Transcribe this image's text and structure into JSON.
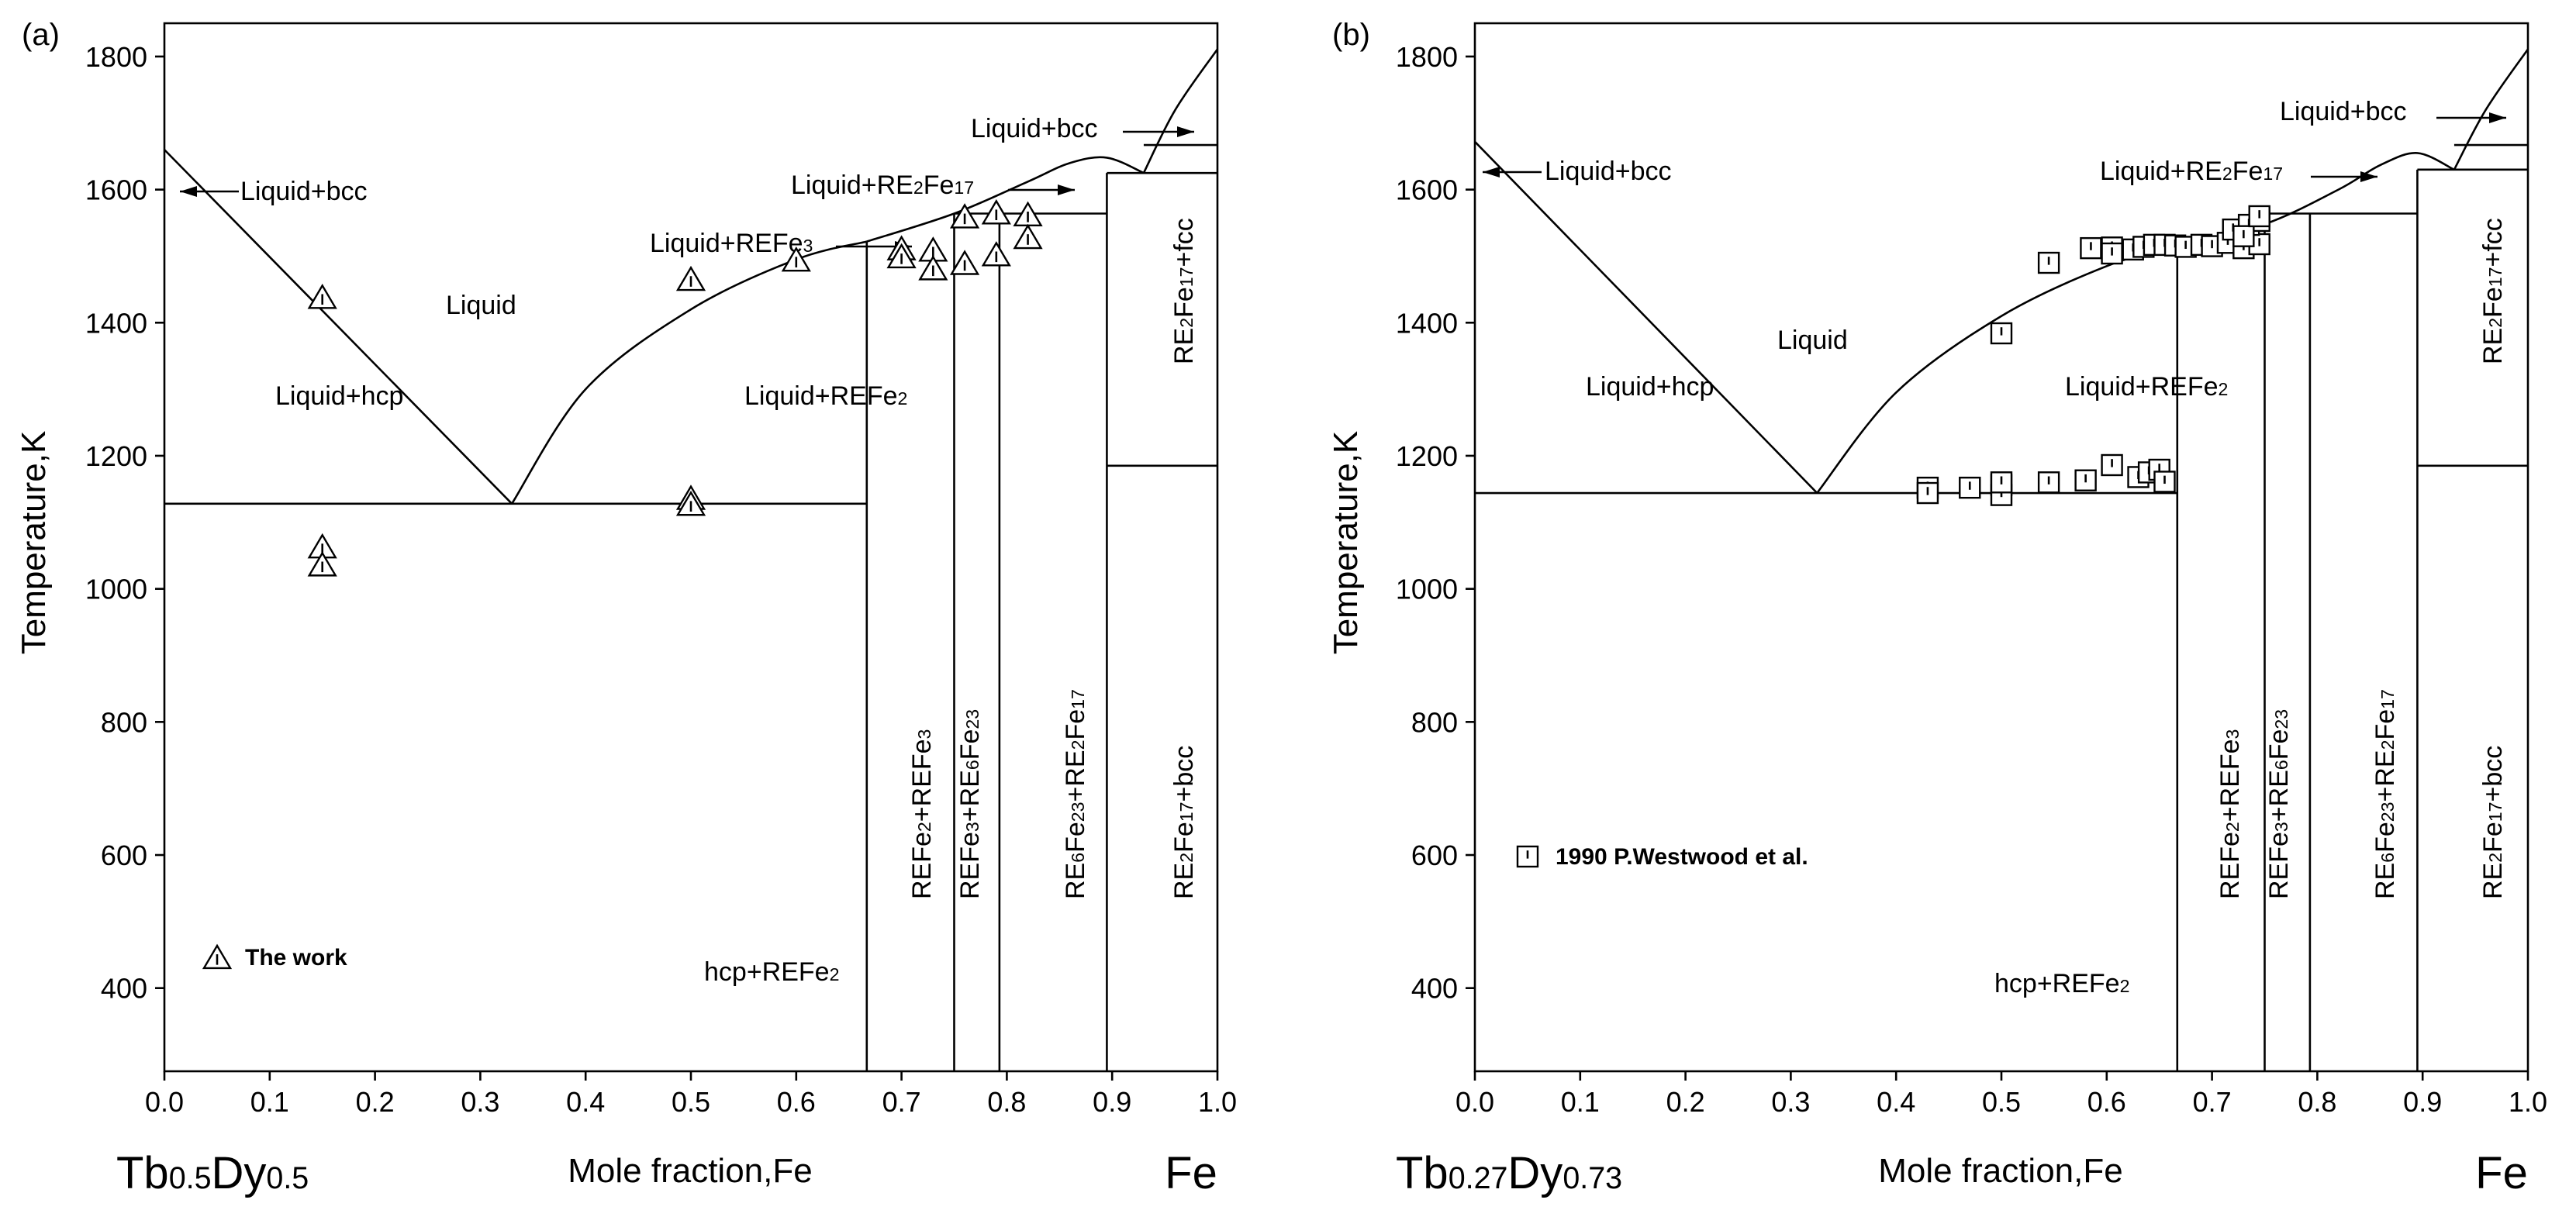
{
  "chart_data": [
    {
      "type": "scatter",
      "panel_label": "(a)",
      "ylabel": "Temperature,K",
      "xlabel": "Mole fraction,Fe",
      "left_end_label": {
        "base": "Tb",
        "s1": "0.5",
        "mid": "Dy",
        "s2": "0.5"
      },
      "right_end_label": "Fe",
      "xlim": [
        0.0,
        1.0
      ],
      "ylim": [
        275,
        1850
      ],
      "xticks": [
        "0.0",
        "0.1",
        "0.2",
        "0.3",
        "0.4",
        "0.5",
        "0.6",
        "0.7",
        "0.8",
        "0.9",
        "1.0"
      ],
      "yticks": [
        "400",
        "600",
        "800",
        "1000",
        "1200",
        "1400",
        "1600",
        "1800"
      ],
      "phase_labels": {
        "liquid": "Liquid",
        "liquid_hcp": "Liquid+hcp",
        "liquid_bcc_left": "Liquid+bcc",
        "liquid_refe2": "Liquid+REFe",
        "liquid_refe2_sub": "2",
        "liquid_refe3": "Liquid+REFe",
        "liquid_refe3_sub": "3",
        "liquid_re2fe17_a": "Liquid+RE",
        "liquid_re2fe17_s1": "2",
        "liquid_re2fe17_b": "Fe",
        "liquid_re2fe17_s2": "17",
        "liquid_bcc_right": "Liquid+bcc",
        "hcp_refe2": "hcp+REFe",
        "hcp_refe2_sub": "2",
        "refe2_refe3": [
          "REFe",
          "2",
          "+REFe",
          "3"
        ],
        "refe3_re6fe23": [
          "REFe",
          "3",
          "+RE",
          "6",
          "Fe",
          "23"
        ],
        "re6fe23_re2fe17": [
          "RE",
          "6",
          "Fe",
          "23",
          "+RE",
          "2",
          "Fe",
          "17"
        ],
        "re2fe17_bcc": [
          "RE",
          "2",
          "Fe",
          "17",
          "+bcc"
        ],
        "re2fe17_fcc": [
          "RE",
          "2",
          "Fe",
          "17",
          "+fcc"
        ]
      },
      "legend": "The work",
      "liquidus_left": {
        "x": [
          0.0,
          0.33
        ],
        "y": [
          1660,
          1128
        ]
      },
      "liquidus_refe2": {
        "x": [
          0.33,
          0.4,
          0.5,
          0.6,
          0.667
        ],
        "y": [
          1128,
          1300,
          1420,
          1495,
          1522
        ]
      },
      "liquidus_re2fe17": {
        "x": [
          0.667,
          0.75,
          0.82,
          0.86,
          0.895,
          0.93
        ],
        "y": [
          1522,
          1564,
          1612,
          1640,
          1648,
          1625
        ]
      },
      "liquidus_bcc": {
        "x": [
          0.93,
          0.96,
          1.0
        ],
        "y": [
          1625,
          1720,
          1811
        ]
      },
      "eutectic_T": 1128,
      "peritectic_refe3_T": 1564,
      "peritectic_re2fe17_T": 1625,
      "compounds_x": [
        0.667,
        0.75,
        0.793,
        0.895
      ],
      "gamma_alpha_T": 1185,
      "delta_gamma_T": 1667,
      "experimental_points": {
        "x": [
          0.15,
          0.15,
          0.15,
          0.5,
          0.5,
          0.5,
          0.6,
          0.7,
          0.7,
          0.73,
          0.73,
          0.76,
          0.76,
          0.79,
          0.79,
          0.82,
          0.82
        ],
        "y": [
          1436,
          1061,
          1034,
          1463,
          1134,
          1125,
          1492,
          1509,
          1497,
          1507,
          1479,
          1557,
          1487,
          1563,
          1500,
          1560,
          1526
        ]
      }
    },
    {
      "type": "scatter",
      "panel_label": "(b)",
      "ylabel": "Temperature,K",
      "xlabel": "Mole fraction,Fe",
      "left_end_label": {
        "base": "Tb",
        "s1": "0.27",
        "mid": "Dy",
        "s2": "0.73"
      },
      "right_end_label": "Fe",
      "xlim": [
        0.0,
        1.0
      ],
      "ylim": [
        275,
        1850
      ],
      "xticks": [
        "0.0",
        "0.1",
        "0.2",
        "0.3",
        "0.4",
        "0.5",
        "0.6",
        "0.7",
        "0.8",
        "0.9",
        "1.0"
      ],
      "yticks": [
        "400",
        "600",
        "800",
        "1000",
        "1200",
        "1400",
        "1600",
        "1800"
      ],
      "phase_labels": {
        "liquid": "Liquid",
        "liquid_hcp": "Liquid+hcp",
        "liquid_bcc_left": "Liquid+bcc",
        "liquid_refe2": "Liquid+REFe",
        "liquid_refe2_sub": "2",
        "liquid_re2fe17_a": "Liquid+RE",
        "liquid_re2fe17_s1": "2",
        "liquid_re2fe17_b": "Fe",
        "liquid_re2fe17_s2": "17",
        "liquid_bcc_right": "Liquid+bcc",
        "hcp_refe2": "hcp+REFe",
        "hcp_refe2_sub": "2",
        "refe2_refe3": [
          "REFe",
          "2",
          "+REFe",
          "3"
        ],
        "refe3_re6fe23": [
          "REFe",
          "3",
          "+RE",
          "6",
          "Fe",
          "23"
        ],
        "re6fe23_re2fe17": [
          "RE",
          "6",
          "Fe",
          "23",
          "+RE",
          "2",
          "Fe",
          "17"
        ],
        "re2fe17_bcc": [
          "RE",
          "2",
          "Fe",
          "17",
          "+bcc"
        ],
        "re2fe17_fcc": [
          "RE",
          "2",
          "Fe",
          "17",
          "+fcc"
        ]
      },
      "legend": "1990 P.Westwood et al.",
      "liquidus_left": {
        "x": [
          0.0,
          0.325
        ],
        "y": [
          1672,
          1144
        ]
      },
      "liquidus_refe2": {
        "x": [
          0.325,
          0.4,
          0.5,
          0.6,
          0.667
        ],
        "y": [
          1144,
          1295,
          1410,
          1485,
          1515
        ]
      },
      "liquidus_re2fe17": {
        "x": [
          0.667,
          0.75,
          0.82,
          0.86,
          0.895,
          0.93
        ],
        "y": [
          1515,
          1548,
          1600,
          1637,
          1655,
          1630
        ]
      },
      "liquidus_bcc": {
        "x": [
          0.93,
          0.96,
          1.0
        ],
        "y": [
          1630,
          1720,
          1811
        ]
      },
      "eutectic_T": 1144,
      "peritectic_refe3_T": 1564,
      "peritectic_re2fe17_T": 1630,
      "compounds_x": [
        0.667,
        0.75,
        0.793,
        0.895
      ],
      "gamma_alpha_T": 1185,
      "delta_gamma_T": 1667,
      "experimental_points": {
        "x": [
          0.43,
          0.43,
          0.47,
          0.5,
          0.5,
          0.5,
          0.545,
          0.58,
          0.605,
          0.63,
          0.64,
          0.65,
          0.655,
          0.545,
          0.585,
          0.605,
          0.605,
          0.625,
          0.635,
          0.645,
          0.655,
          0.665,
          0.675,
          0.69,
          0.7,
          0.715,
          0.73,
          0.745,
          0.72,
          0.735,
          0.745,
          0.73,
          0.745,
          0.5
        ],
        "y": [
          1152,
          1144,
          1152,
          1156,
          1141,
          1160,
          1160,
          1163,
          1186,
          1168,
          1175,
          1179,
          1161,
          1490,
          1512,
          1513,
          1504,
          1510,
          1514,
          1517,
          1517,
          1516,
          1514,
          1517,
          1515,
          1520,
          1512,
          1518,
          1540,
          1547,
          1553,
          1530,
          1560,
          1384
        ]
      }
    }
  ]
}
